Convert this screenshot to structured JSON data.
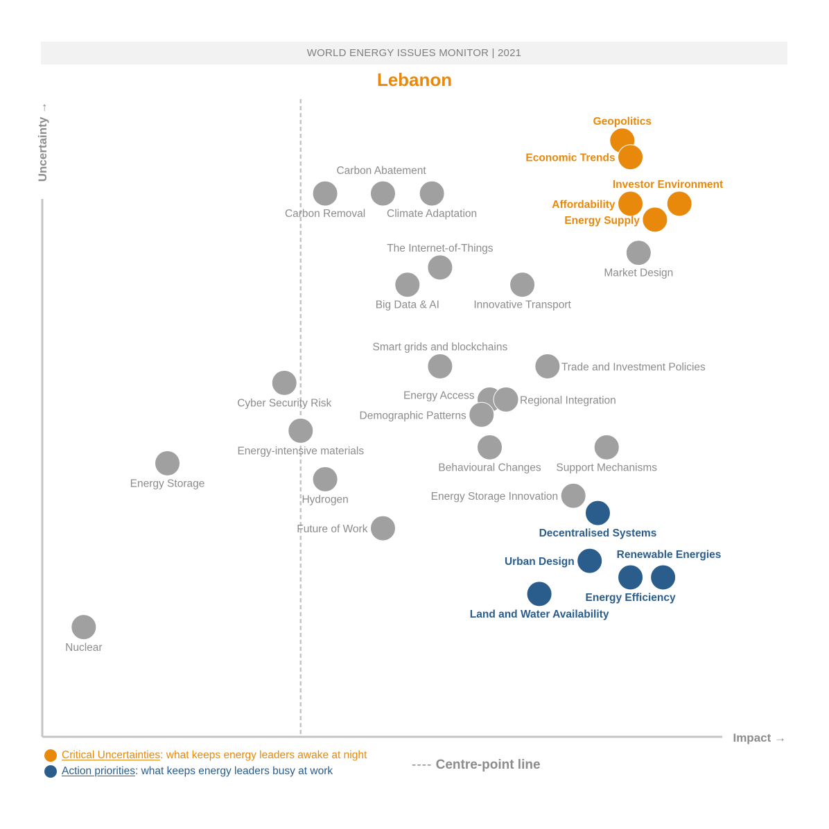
{
  "header": {
    "banner": "WORLD ENERGY ISSUES MONITOR | 2021",
    "country": "Lebanon"
  },
  "colors": {
    "critical": "#e8890c",
    "action": "#2a5d8c",
    "neutral": "#a0a0a0",
    "neutral_label": "#8c8c8c",
    "axis": "#c4c4c4"
  },
  "legend": {
    "critical": {
      "term": "Critical Uncertainties",
      "desc": ": what keeps energy leaders awake at night"
    },
    "action": {
      "term": "Action priorities",
      "desc": ": what keeps energy leaders busy at work"
    },
    "centre_dash": "----",
    "centre_label": " Centre-point line"
  },
  "chart_data": {
    "type": "scatter",
    "title": "Lebanon",
    "xlabel": "Impact",
    "ylabel": "Uncertainty",
    "xlim": [
      0,
      100
    ],
    "ylim": [
      0,
      100
    ],
    "centre_x": 38,
    "arrow": "→",
    "points": [
      {
        "label": "Geopolitics",
        "x": 85.3,
        "y": 93.5,
        "group": "critical",
        "label_pos": "above"
      },
      {
        "label": "Economic Trends",
        "x": 86.5,
        "y": 90.9,
        "group": "critical",
        "label_pos": "left"
      },
      {
        "label": "Investor Environment",
        "x": 93.7,
        "y": 83.6,
        "group": "critical",
        "label_pos": "above-left"
      },
      {
        "label": "Affordability",
        "x": 86.5,
        "y": 83.6,
        "group": "critical",
        "label_pos": "left"
      },
      {
        "label": "Energy Supply",
        "x": 90.1,
        "y": 81.1,
        "group": "critical",
        "label_pos": "left"
      },
      {
        "label": "Carbon Abatement",
        "x": 50.1,
        "y": 85.2,
        "group": "neutral",
        "label_pos": "above-right"
      },
      {
        "label": "Carbon Removal",
        "x": 41.6,
        "y": 85.2,
        "group": "neutral",
        "label_pos": "below"
      },
      {
        "label": "Climate Adaptation",
        "x": 57.3,
        "y": 85.2,
        "group": "neutral",
        "label_pos": "below"
      },
      {
        "label": "Market Design",
        "x": 87.7,
        "y": 75.9,
        "group": "neutral",
        "label_pos": "below"
      },
      {
        "label": "The Internet-of-Things",
        "x": 58.5,
        "y": 73.6,
        "group": "neutral",
        "label_pos": "above"
      },
      {
        "label": "Big Data & AI",
        "x": 53.7,
        "y": 70.9,
        "group": "neutral",
        "label_pos": "below"
      },
      {
        "label": "Innovative Transport",
        "x": 70.6,
        "y": 70.9,
        "group": "neutral",
        "label_pos": "below"
      },
      {
        "label": "Smart grids and blockchains",
        "x": 58.5,
        "y": 58.1,
        "group": "neutral",
        "label_pos": "above"
      },
      {
        "label": "Trade and Investment Policies",
        "x": 74.3,
        "y": 58.1,
        "group": "neutral",
        "label_pos": "right"
      },
      {
        "label": "Cyber Security Risk",
        "x": 35.6,
        "y": 55.5,
        "group": "neutral",
        "label_pos": "below"
      },
      {
        "label": "Energy Access",
        "x": 65.8,
        "y": 52.9,
        "group": "neutral",
        "label_pos": "left-up"
      },
      {
        "label": "Regional Integration",
        "x": 68.2,
        "y": 52.9,
        "group": "neutral",
        "label_pos": "right"
      },
      {
        "label": "Demographic Patterns",
        "x": 64.6,
        "y": 50.5,
        "group": "neutral",
        "label_pos": "left"
      },
      {
        "label": "Energy-intensive materials",
        "x": 38.0,
        "y": 48.0,
        "group": "neutral",
        "label_pos": "below"
      },
      {
        "label": "Behavioural Changes",
        "x": 65.8,
        "y": 45.4,
        "group": "neutral",
        "label_pos": "below"
      },
      {
        "label": "Support Mechanisms",
        "x": 83.0,
        "y": 45.4,
        "group": "neutral",
        "label_pos": "below"
      },
      {
        "label": "Energy Storage",
        "x": 18.4,
        "y": 42.9,
        "group": "neutral",
        "label_pos": "below"
      },
      {
        "label": "Hydrogen",
        "x": 41.6,
        "y": 40.4,
        "group": "neutral",
        "label_pos": "below"
      },
      {
        "label": "Energy Storage Innovation",
        "x": 78.1,
        "y": 37.8,
        "group": "neutral",
        "label_pos": "left"
      },
      {
        "label": "Decentralised Systems",
        "x": 81.7,
        "y": 35.1,
        "group": "action",
        "label_pos": "below"
      },
      {
        "label": "Future of Work",
        "x": 50.1,
        "y": 32.7,
        "group": "neutral",
        "label_pos": "left"
      },
      {
        "label": "Urban Design",
        "x": 80.5,
        "y": 27.6,
        "group": "action",
        "label_pos": "left"
      },
      {
        "label": "Renewable Energies",
        "x": 91.3,
        "y": 25.0,
        "group": "action",
        "label_pos": "above-right"
      },
      {
        "label": "Energy Efficiency",
        "x": 86.5,
        "y": 25.0,
        "group": "action",
        "label_pos": "below"
      },
      {
        "label": "Land and Water Availability",
        "x": 73.1,
        "y": 22.4,
        "group": "action",
        "label_pos": "below"
      },
      {
        "label": "Nuclear",
        "x": 6.1,
        "y": 17.2,
        "group": "neutral",
        "label_pos": "below"
      }
    ]
  }
}
